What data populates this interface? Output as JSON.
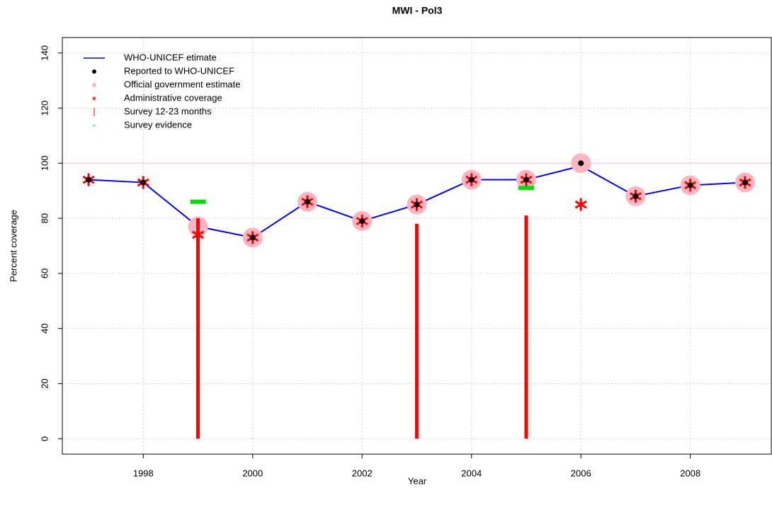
{
  "chart_data": {
    "type": "line",
    "title": "MWI  -  Pol3",
    "x_label": "Year",
    "y_label": "Percent coverage",
    "x": [
      1997,
      1998,
      1999,
      2000,
      2001,
      2002,
      2003,
      2004,
      2005,
      2006,
      2007,
      2008,
      2009
    ],
    "xlim": [
      1996.52,
      2009.48
    ],
    "xticks": [
      1998,
      2000,
      2002,
      2004,
      2006,
      2008
    ],
    "ylim": [
      -5.6,
      145.6
    ],
    "yticks": [
      0,
      20,
      40,
      60,
      80,
      100,
      120,
      140
    ],
    "grid": true,
    "hline": 100,
    "hline_color": "#ffc0cb",
    "legend": "top-left",
    "series": [
      {
        "name": "WHO-UNICEF etimate",
        "color": "#0000ff",
        "style": "line",
        "values": [
          94,
          93,
          77,
          73,
          86,
          79,
          85,
          94,
          94,
          99,
          88,
          92,
          93
        ]
      },
      {
        "name": "Official government estimate",
        "color": "#ffb6c1",
        "style": "circle",
        "values": [
          null,
          null,
          77,
          73,
          86,
          79,
          85,
          94,
          94,
          100,
          88,
          92,
          93
        ]
      },
      {
        "name": "Survey 12-23 months",
        "color": "#ff0000",
        "style": "bar",
        "values": [
          null,
          null,
          80,
          null,
          null,
          null,
          78,
          null,
          81,
          null,
          null,
          null,
          null
        ]
      },
      {
        "name": "Survey evidence",
        "color": "#00dd00",
        "style": "dash",
        "values": [
          null,
          null,
          86,
          null,
          null,
          null,
          null,
          null,
          91,
          null,
          null,
          null,
          null
        ]
      },
      {
        "name": "Administrative coverage",
        "color": "#ff0000",
        "style": "asterisk",
        "values": [
          94,
          93,
          74,
          73,
          86,
          79,
          85,
          94,
          94,
          85,
          88,
          92,
          93
        ]
      },
      {
        "name": "Reported to WHO-UNICEF",
        "color": "#000000",
        "style": "point",
        "values": [
          94,
          93,
          null,
          73,
          86,
          79,
          85,
          94,
          94,
          100,
          88,
          92,
          93
        ]
      }
    ],
    "legend_order": [
      0,
      5,
      1,
      4,
      2,
      3
    ]
  }
}
